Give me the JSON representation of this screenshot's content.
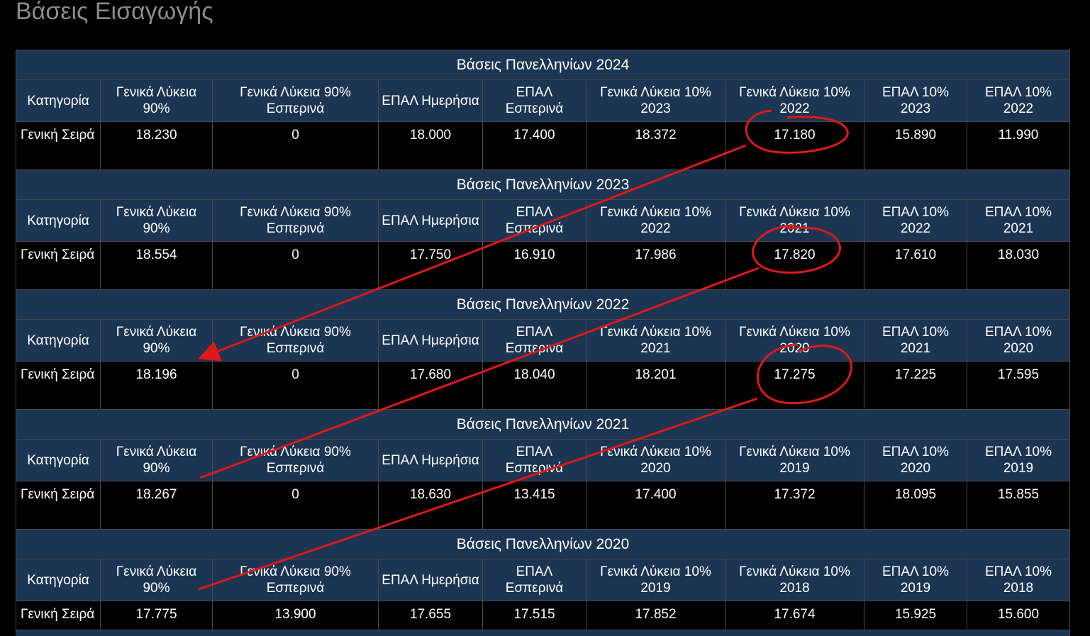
{
  "page_title": "Βάσεις Εισαγωγής",
  "tables": [
    {
      "title": "Βάσεις Πανελληνίων 2024",
      "headers": [
        "Κατηγορία",
        "Γενικά Λύκεια 90%",
        "Γενικά Λύκεια 90% Εσπερινά",
        "ΕΠΑΛ Ημερήσια",
        "ΕΠΑΛ Εσπερινά",
        "Γενικά Λύκεια 10% 2023",
        "Γενικά Λύκεια 10% 2022",
        "ΕΠΑΛ 10% 2023",
        "ΕΠΑΛ 10% 2022"
      ],
      "row": [
        "Γενική Σειρά",
        "18.230",
        "0",
        "18.000",
        "17.400",
        "18.372",
        "17.180",
        "15.890",
        "11.990"
      ]
    },
    {
      "title": "Βάσεις Πανελληνίων 2023",
      "headers": [
        "Κατηγορία",
        "Γενικά Λύκεια 90%",
        "Γενικά Λύκεια 90% Εσπερινά",
        "ΕΠΑΛ Ημερήσια",
        "ΕΠΑΛ Εσπερινά",
        "Γενικά Λύκεια 10% 2022",
        "Γενικά Λύκεια 10% 2021",
        "ΕΠΑΛ 10% 2022",
        "ΕΠΑΛ 10% 2021"
      ],
      "row": [
        "Γενική Σειρά",
        "18.554",
        "0",
        "17.750",
        "16.910",
        "17.986",
        "17.820",
        "17.610",
        "18.030"
      ]
    },
    {
      "title": "Βάσεις Πανελληνίων 2022",
      "headers": [
        "Κατηγορία",
        "Γενικά Λύκεια 90%",
        "Γενικά Λύκεια 90% Εσπερινά",
        "ΕΠΑΛ Ημερήσια",
        "ΕΠΑΛ Εσπερινά",
        "Γενικά Λύκεια 10% 2021",
        "Γενικά Λύκεια 10% 2020",
        "ΕΠΑΛ 10% 2021",
        "ΕΠΑΛ 10% 2020"
      ],
      "row": [
        "Γενική Σειρά",
        "18.196",
        "0",
        "17.680",
        "18.040",
        "18.201",
        "17.275",
        "17.225",
        "17.595"
      ]
    },
    {
      "title": "Βάσεις Πανελληνίων 2021",
      "headers": [
        "Κατηγορία",
        "Γενικά Λύκεια 90%",
        "Γενικά Λύκεια 90% Εσπερινά",
        "ΕΠΑΛ Ημερήσια",
        "ΕΠΑΛ Εσπερινά",
        "Γενικά Λύκεια 10% 2020",
        "Γενικά Λύκεια 10% 2019",
        "ΕΠΑΛ 10% 2020",
        "ΕΠΑΛ 10% 2019"
      ],
      "row": [
        "Γενική Σειρά",
        "18.267",
        "0",
        "18.630",
        "13.415",
        "17.400",
        "17.372",
        "18.095",
        "15.855"
      ]
    },
    {
      "title": "Βάσεις Πανελληνίων 2020",
      "headers": [
        "Κατηγορία",
        "Γενικά Λύκεια 90%",
        "Γενικά Λύκεια 90% Εσπερινά",
        "ΕΠΑΛ Ημερήσια",
        "ΕΠΑΛ Εσπερινά",
        "Γενικά Λύκεια 10% 2019",
        "Γενικά Λύκεια 10% 2018",
        "ΕΠΑΛ 10% 2019",
        "ΕΠΑΛ 10% 2018"
      ],
      "row": [
        "Γενική Σειρά",
        "17.775",
        "13.900",
        "17.655",
        "17.515",
        "17.852",
        "17.674",
        "15.925",
        "15.600"
      ]
    }
  ],
  "colors": {
    "header_bg": "#1b3553",
    "cell_bg": "#000000",
    "text": "#ffffff",
    "title_text": "#8a8a8a",
    "annotation": "#e01818"
  }
}
